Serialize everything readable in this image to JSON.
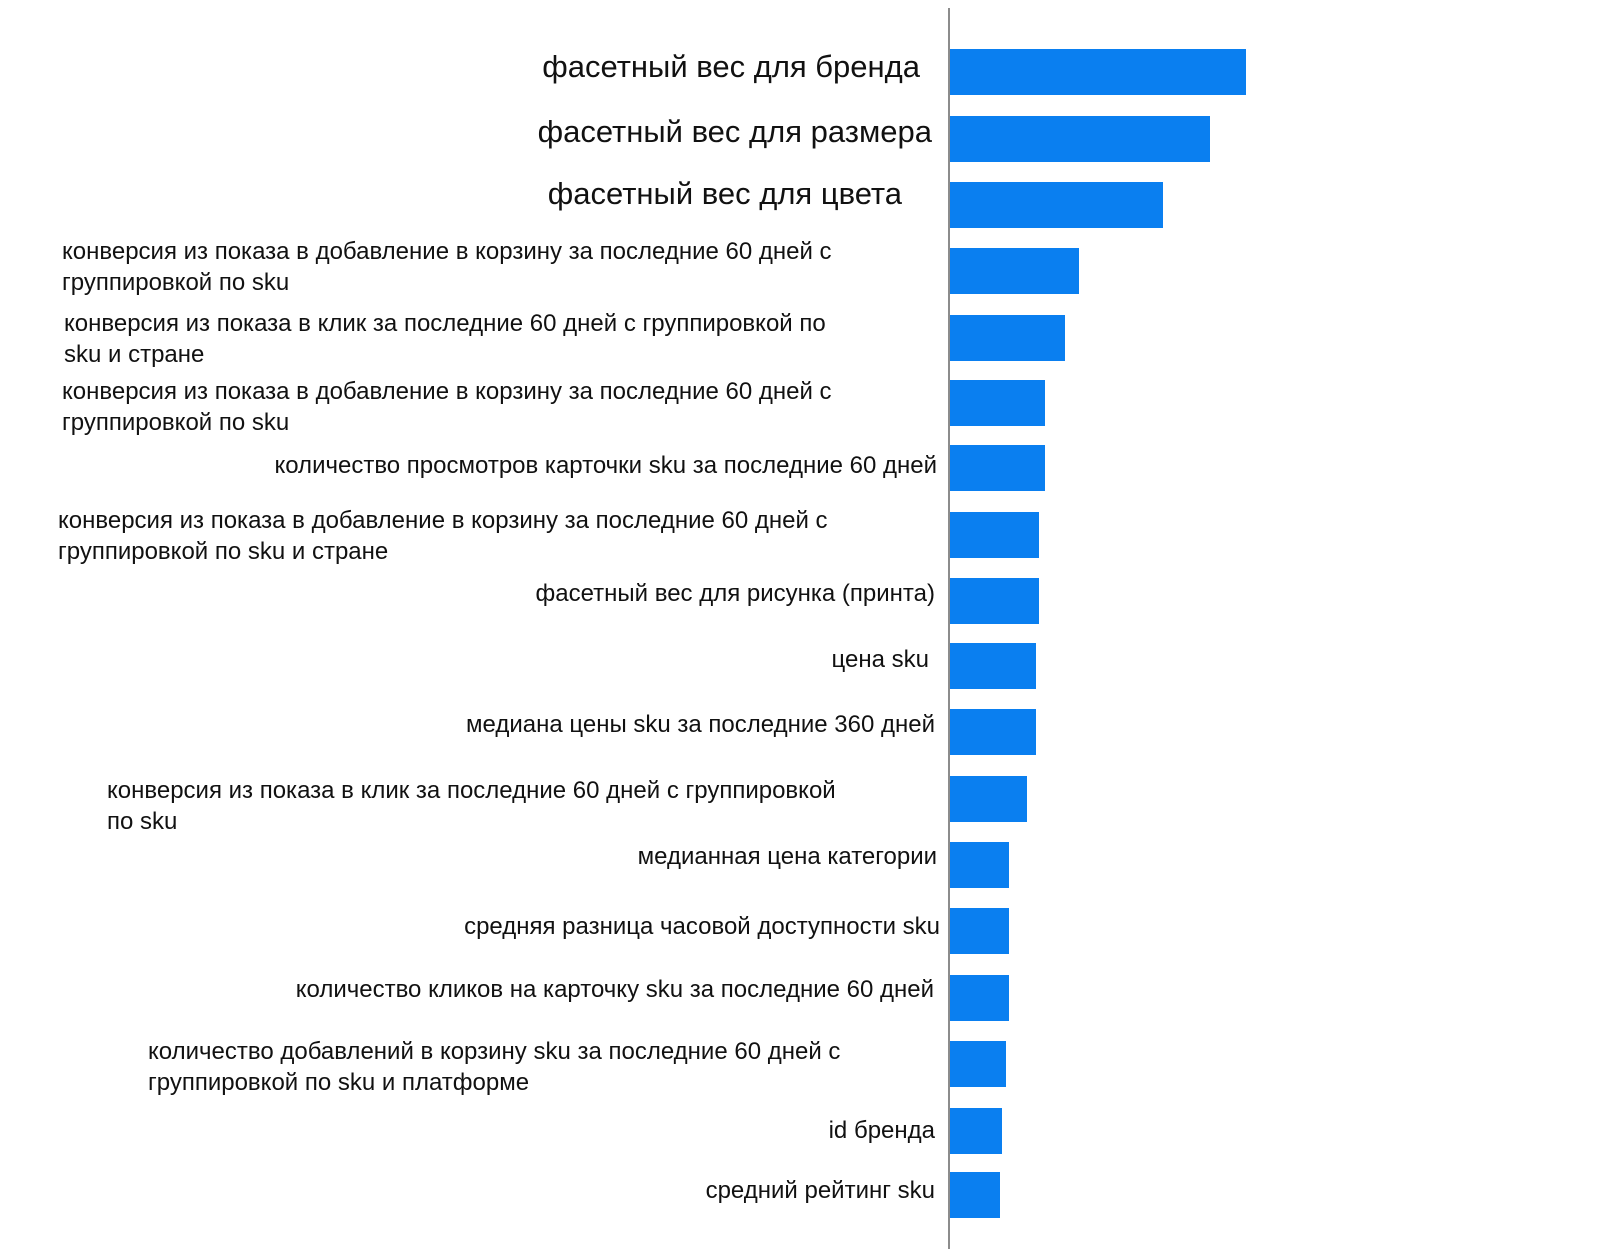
{
  "chart_data": {
    "type": "bar",
    "orientation": "horizontal",
    "bar_color": "#0a7ff0",
    "axis_color": "#8c8c8c",
    "title": "",
    "xlabel": "",
    "ylabel": "",
    "xlim": [
      0,
      100
    ],
    "categories": [
      "фасетный вес для бренда",
      "фасетный вес для размера",
      "фасетный вес для цвета",
      "конверсия из показа в добавление в корзину за последние 60 дней с группировкой по sku",
      "конверсия из показа в клик за последние 60 дней с группировкой по sku и стране",
      "конверсия из показа в добавление в корзину за последние 60 дней с группировкой по sku",
      "количество просмотров карточки sku за последние 60 дней",
      "конверсия из показа в добавление в корзину за последние 60 дней с группировкой по sku и стране",
      "фасетный вес для рисунка (принта)",
      "цена sku",
      "медиана цены sku за последние 360 дней",
      "конверсия из показа в клик за последние 60 дней с группировкой по sku",
      "медианная цена категории",
      "средняя разница часовой доступности sku",
      "количество кликов на карточку sku за последние 60 дней",
      "количество добавлений в корзину sku за последние 60 дней с группировкой по sku и платформе",
      "id бренда",
      "средний рейтинг sku"
    ],
    "values": [
      100,
      88,
      72,
      43.5,
      39,
      32,
      32,
      30,
      30,
      29,
      29,
      26,
      20,
      20,
      20,
      19,
      17.5,
      17
    ],
    "labels_display": [
      "фасетный вес для бренда",
      "фасетный вес для размера",
      "фасетный вес для цвета",
      "конверсия из показа в добавление в корзину за последние 60 дней с\nгруппировкой по sku",
      "конверсия из показа в клик за последние 60 дней с группировкой по\nsku и стране",
      "конверсия из показа в добавление в корзину за последние 60 дней с\nгруппировкой по sku",
      "количество просмотров карточки sku за последние 60 дней",
      "конверсия из показа в добавление в корзину за последние 60 дней с\nгруппировкой по sku и стране",
      "фасетный вес для рисунка (принта)",
      "цена sku",
      "медиана цены sku за последние 360 дней",
      "конверсия из показа в клик за последние 60 дней с группировкой\nпо sku",
      "медианная цена категории",
      "средняя разница часовой доступности sku",
      "количество кликов на карточку sku за последние 60 дней",
      "количество добавлений в корзину sku за последние 60 дней с\nгруппировкой по sku и платформе",
      "id бренда",
      "средний рейтинг sku"
    ]
  }
}
